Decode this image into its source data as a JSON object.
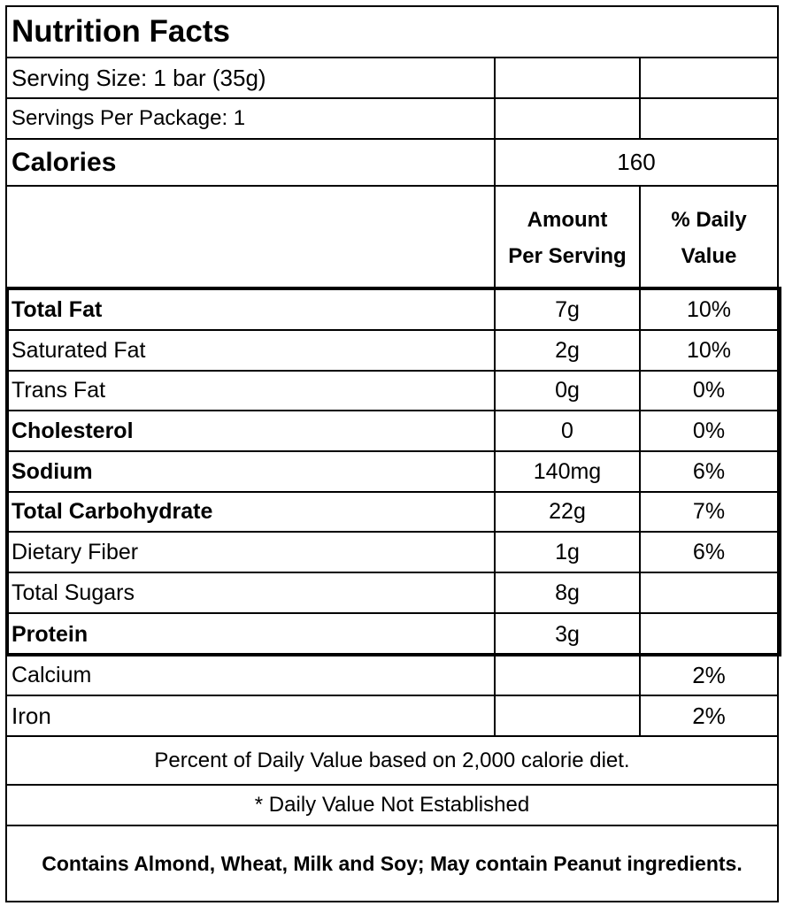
{
  "title": "Nutrition Facts",
  "serving_size": "Serving Size: 1 bar (35g)",
  "servings_per_package": "Servings Per Package: 1",
  "calories": {
    "label": "Calories",
    "value": "160"
  },
  "columns": {
    "amount_line1": "Amount",
    "amount_line2": "Per Serving",
    "daily_line1": "% Daily",
    "daily_line2": "Value"
  },
  "nutrients": [
    {
      "name": "Total Fat",
      "amount": "7g",
      "dv": "10%"
    },
    {
      "name": "Saturated Fat",
      "amount": "2g",
      "dv": "10%"
    },
    {
      "name": "Trans Fat",
      "amount": "0g",
      "dv": "0%"
    },
    {
      "name": "Cholesterol",
      "amount": "0",
      "dv": "0%"
    },
    {
      "name": "Sodium",
      "amount": "140mg",
      "dv": "6%"
    },
    {
      "name": "Total Carbohydrate",
      "amount": "22g",
      "dv": "7%"
    },
    {
      "name": "Dietary Fiber",
      "amount": "1g",
      "dv": "6%"
    },
    {
      "name": "Total Sugars",
      "amount": "8g",
      "dv": ""
    },
    {
      "name": "Protein",
      "amount": "3g",
      "dv": ""
    }
  ],
  "minerals": [
    {
      "name": "Calcium",
      "amount": "",
      "dv": "2%"
    },
    {
      "name": "Iron",
      "amount": "",
      "dv": "2%"
    }
  ],
  "footnotes": {
    "daily_value_basis": "Percent of Daily Value based on 2,000 calorie diet.",
    "not_established": "* Daily Value Not Established",
    "allergens": "Contains Almond, Wheat, Milk and Soy;  May contain Peanut ingredients."
  }
}
